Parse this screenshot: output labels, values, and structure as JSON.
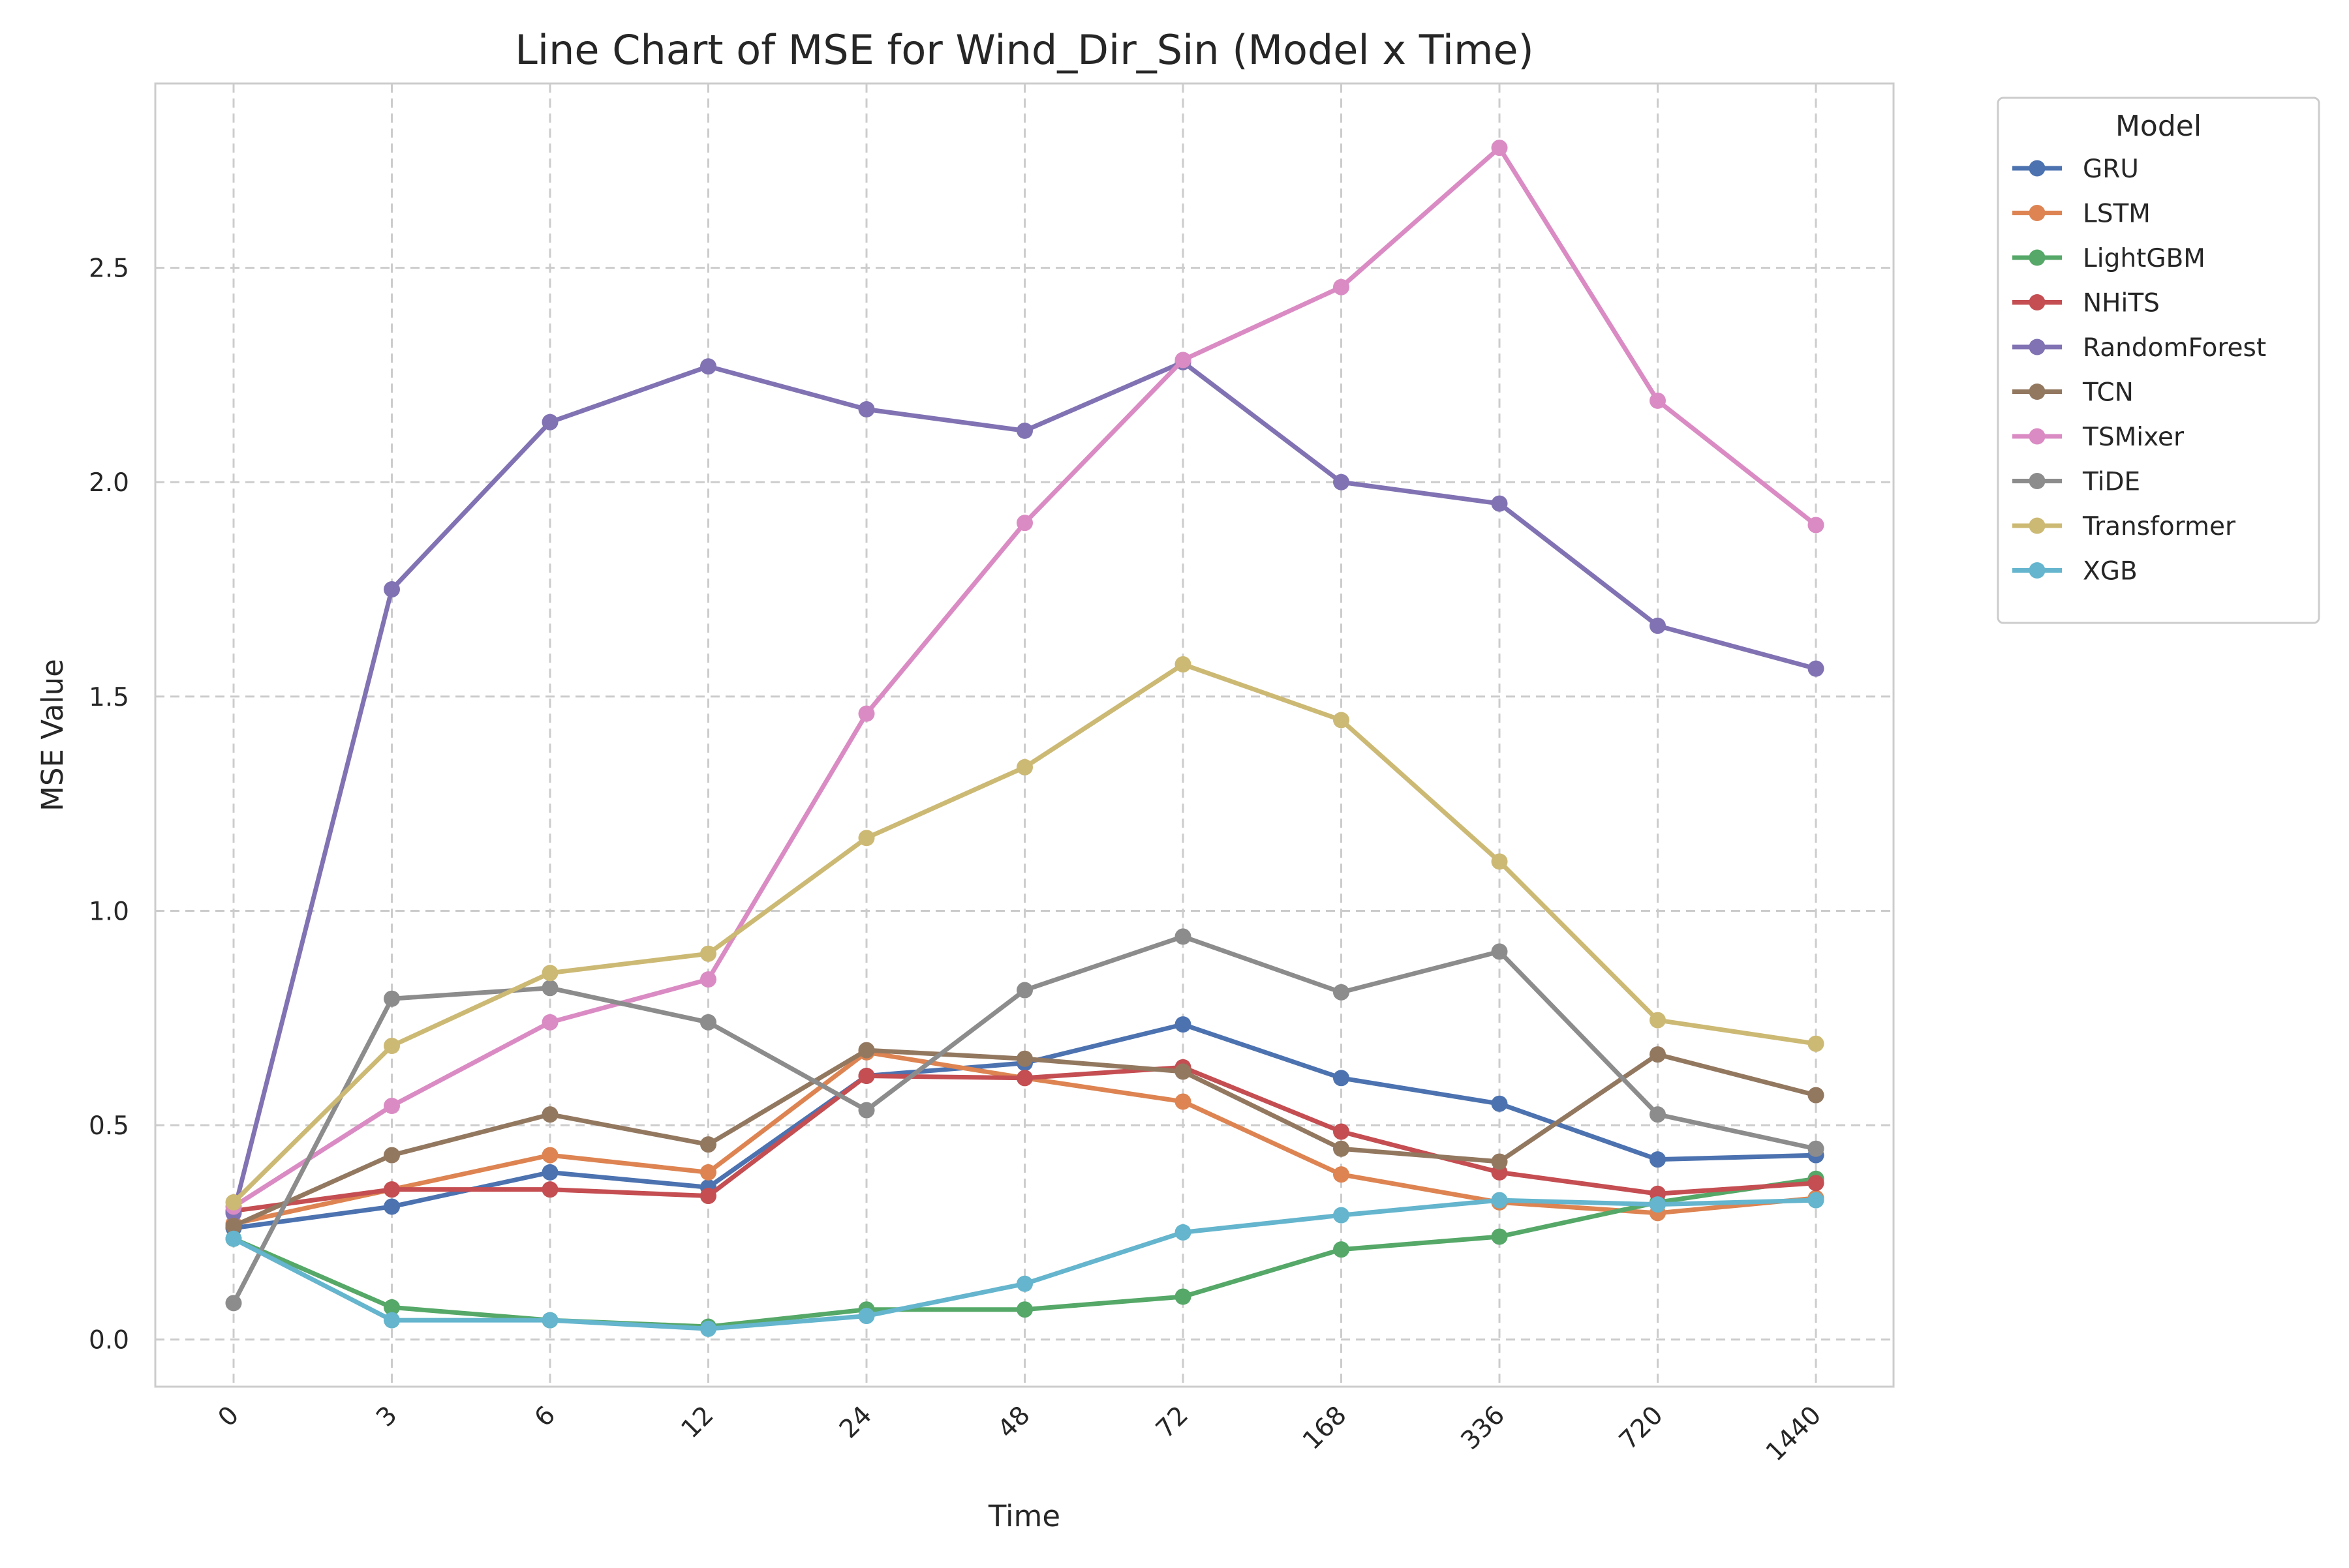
{
  "chart_data": {
    "type": "line",
    "title": "Line Chart of MSE for Wind_Dir_Sin (Model x Time)",
    "xlabel": "Time",
    "ylabel": "MSE Value",
    "categories": [
      "0",
      "3",
      "6",
      "12",
      "24",
      "48",
      "72",
      "168",
      "336",
      "720",
      "1440"
    ],
    "ylim": [
      -0.11,
      2.93
    ],
    "yticks": [
      0.0,
      0.5,
      1.0,
      1.5,
      2.0,
      2.5
    ],
    "ytick_labels": [
      "0.0",
      "0.5",
      "1.0",
      "1.5",
      "2.0",
      "2.5"
    ],
    "grid": true,
    "legend": {
      "title": "Model",
      "placement": "outside-top-right"
    },
    "series": [
      {
        "name": "GRU",
        "color": "#4c72b0",
        "values": [
          0.26,
          0.31,
          0.39,
          0.355,
          0.615,
          0.645,
          0.735,
          0.61,
          0.55,
          0.42,
          0.43
        ]
      },
      {
        "name": "LSTM",
        "color": "#dd8452",
        "values": [
          0.27,
          0.35,
          0.43,
          0.39,
          0.67,
          0.61,
          0.555,
          0.385,
          0.32,
          0.295,
          0.33
        ]
      },
      {
        "name": "LightGBM",
        "color": "#55a868",
        "values": [
          0.235,
          0.075,
          0.045,
          0.03,
          0.07,
          0.07,
          0.1,
          0.21,
          0.24,
          0.32,
          0.375
        ]
      },
      {
        "name": "NHiTS",
        "color": "#c44e52",
        "values": [
          0.3,
          0.35,
          0.35,
          0.335,
          0.615,
          0.61,
          0.635,
          0.485,
          0.39,
          0.34,
          0.365
        ]
      },
      {
        "name": "RandomForest",
        "color": "#8172b3",
        "values": [
          0.295,
          1.75,
          2.14,
          2.27,
          2.17,
          2.12,
          2.28,
          2.0,
          1.95,
          1.665,
          1.565
        ]
      },
      {
        "name": "TCN",
        "color": "#937860",
        "values": [
          0.265,
          0.43,
          0.525,
          0.455,
          0.675,
          0.655,
          0.625,
          0.445,
          0.415,
          0.665,
          0.57
        ]
      },
      {
        "name": "TSMixer",
        "color": "#da8bc3",
        "values": [
          0.31,
          0.545,
          0.74,
          0.84,
          1.46,
          1.905,
          2.285,
          2.455,
          2.78,
          2.19,
          1.9
        ]
      },
      {
        "name": "TiDE",
        "color": "#8c8c8c",
        "values": [
          0.085,
          0.795,
          0.82,
          0.74,
          0.535,
          0.815,
          0.94,
          0.81,
          0.905,
          0.525,
          0.445
        ]
      },
      {
        "name": "Transformer",
        "color": "#ccb974",
        "values": [
          0.32,
          0.685,
          0.855,
          0.9,
          1.17,
          1.335,
          1.575,
          1.445,
          1.115,
          0.745,
          0.69
        ]
      },
      {
        "name": "XGB",
        "color": "#64b5cd",
        "values": [
          0.235,
          0.045,
          0.045,
          0.025,
          0.055,
          0.13,
          0.25,
          0.29,
          0.325,
          0.315,
          0.325
        ]
      }
    ]
  }
}
